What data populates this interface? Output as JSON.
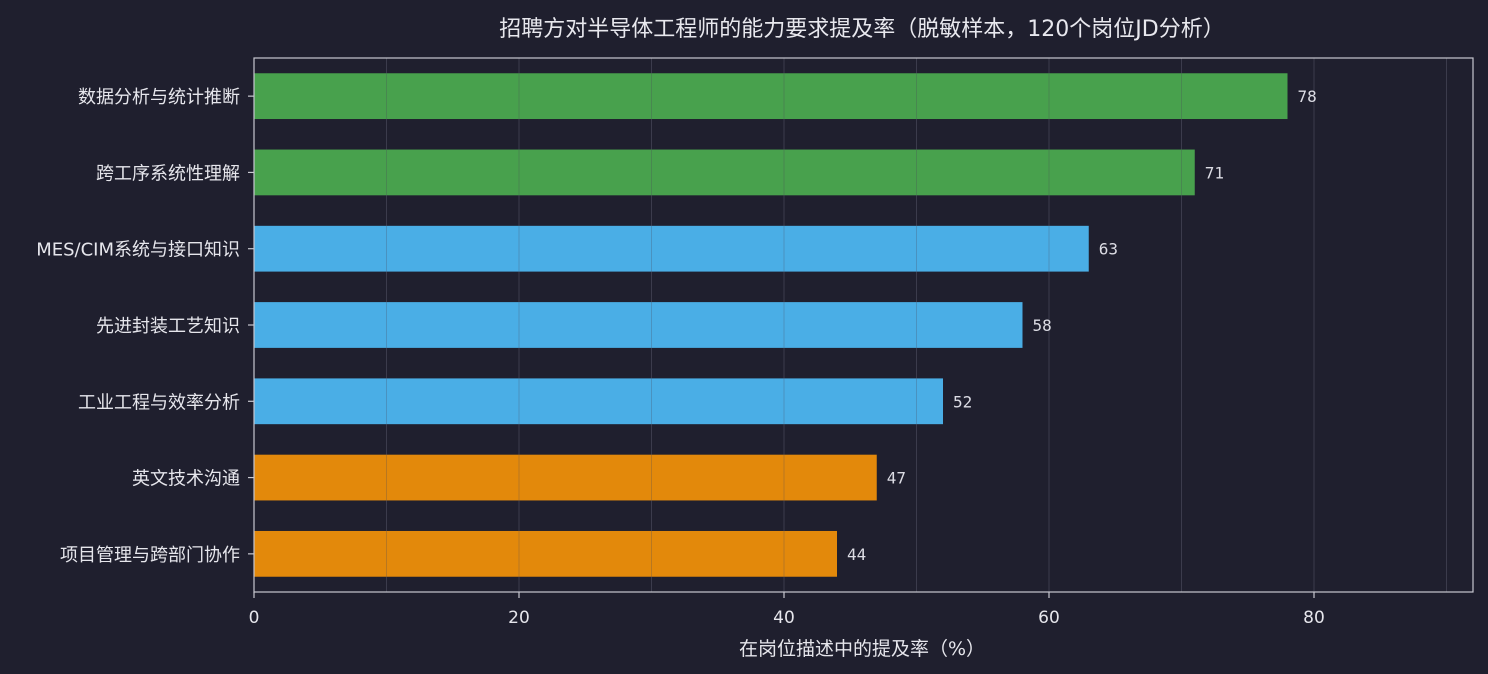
{
  "chart_data": {
    "type": "bar",
    "orientation": "horizontal",
    "title": "招聘方对半导体工程师的能力要求提及率（脱敏样本，120个岗位JD分析）",
    "xlabel": "在岗位描述中的提及率（%）",
    "ylabel": "",
    "xlim": [
      0,
      92
    ],
    "xticks": [
      0,
      20,
      40,
      60,
      80
    ],
    "grid": true,
    "legend": "none",
    "categories": [
      "数据分析与统计推断",
      "跨工序系统性理解",
      "MES/CIM系统与接口知识",
      "先进封装工艺知识",
      "工业工程与效率分析",
      "英文技术沟通",
      "项目管理与跨部门协作"
    ],
    "values": [
      78,
      71,
      63,
      58,
      52,
      47,
      44
    ],
    "bar_colors": [
      "#48a14d",
      "#48a14d",
      "#4aaee6",
      "#4aaee6",
      "#4aaee6",
      "#e3890b",
      "#e3890b"
    ]
  },
  "colors": {
    "background": "#1f1f2e",
    "text": "#e6e6ec",
    "frame": "#c8c8d0",
    "grid": "#4a4a5c"
  }
}
